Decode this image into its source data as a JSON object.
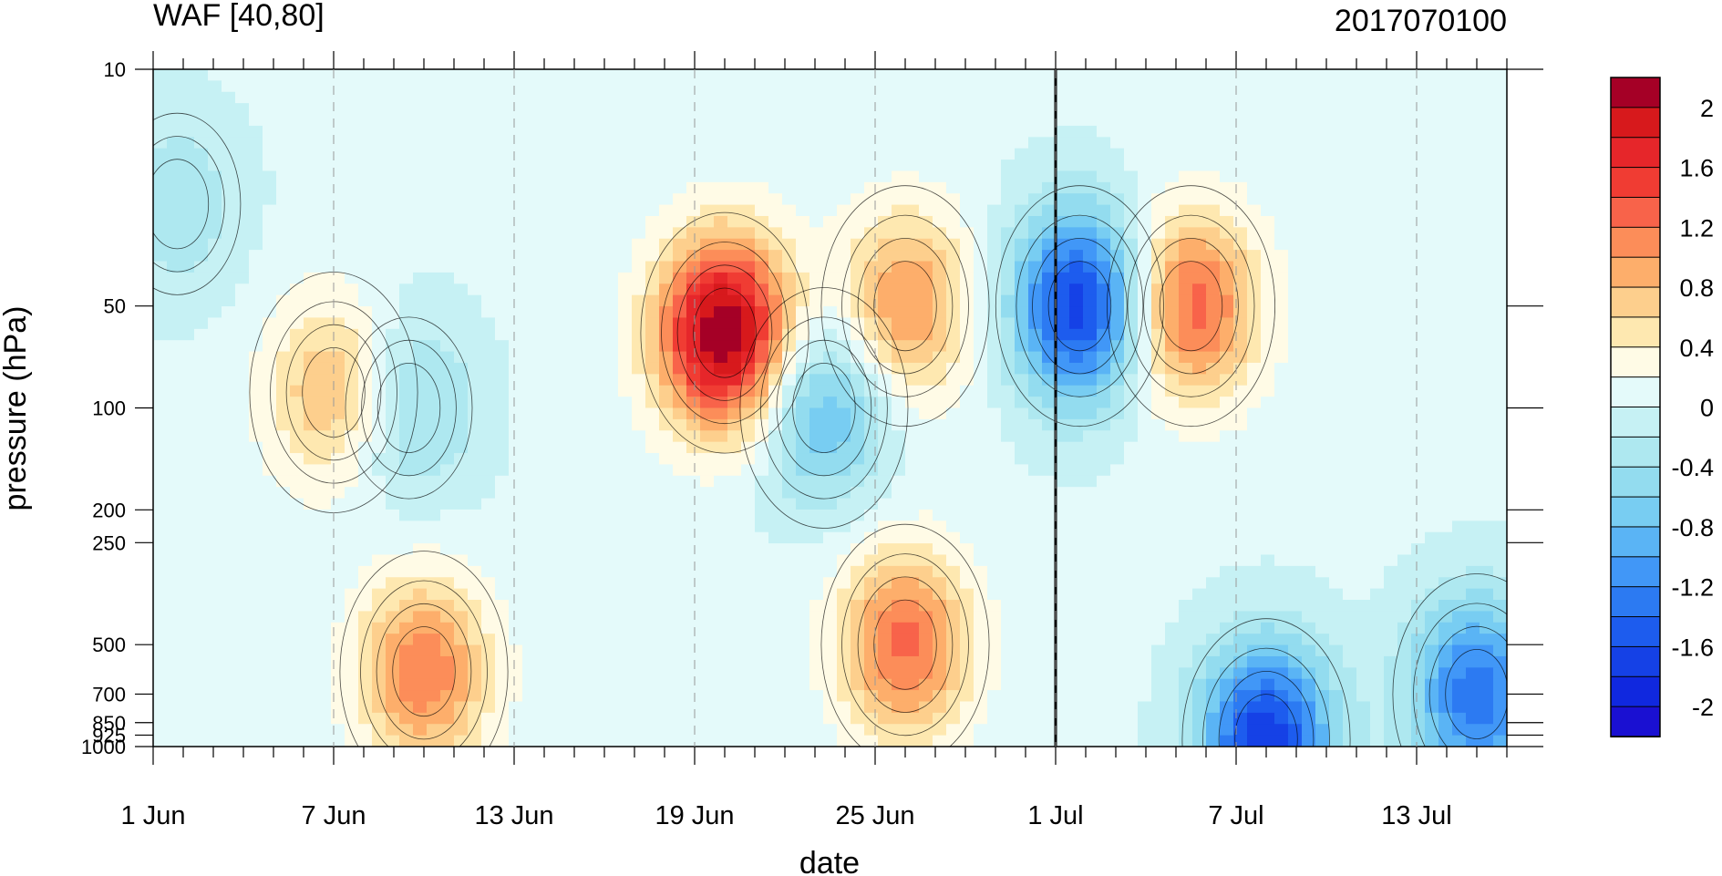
{
  "chart_data": {
    "type": "heatmap",
    "title": "WAF [40,80]",
    "title_right": "2017070100",
    "xlabel": "date",
    "ylabel": "pressure (hPa)",
    "x_ticks": [
      "1 Jun",
      "7 Jun",
      "13 Jun",
      "19 Jun",
      "25 Jun",
      "1 Jul",
      "7 Jul",
      "13 Jul"
    ],
    "x_tick_days": [
      0,
      6,
      12,
      18,
      24,
      30,
      36,
      42
    ],
    "x_range_days": [
      0,
      45
    ],
    "y_ticks": [
      "10",
      "50",
      "100",
      "200",
      "250",
      "500",
      "700",
      "850",
      "925",
      "1000"
    ],
    "y_tick_values": [
      10,
      50,
      100,
      200,
      250,
      500,
      700,
      850,
      925,
      1000
    ],
    "y_scale": "log",
    "y_range": [
      10,
      1000
    ],
    "marker_line_day": 30,
    "colorbar": {
      "labels": [
        "2",
        "1.6",
        "1.2",
        "0.8",
        "0.4",
        "0",
        "-0.4",
        "-0.8",
        "-1.2",
        "-1.6",
        "-2"
      ],
      "levels": [
        2.2,
        2.0,
        1.8,
        1.6,
        1.4,
        1.2,
        1.0,
        0.8,
        0.6,
        0.4,
        0.2,
        0.0,
        -0.2,
        -0.4,
        -0.6,
        -0.8,
        -1.0,
        -1.2,
        -1.4,
        -1.6,
        -1.8,
        -2.0,
        -2.2
      ],
      "colors": [
        "#a50026",
        "#d7191c",
        "#e6262a",
        "#f03c33",
        "#f8634a",
        "#fc8d59",
        "#fdae6b",
        "#fdcf8d",
        "#fee8b0",
        "#fffbe6",
        "#e4fafa",
        "#c6f1f4",
        "#aee8f0",
        "#93dcef",
        "#78cdf2",
        "#5ab4f5",
        "#4197f7",
        "#2c7af2",
        "#1d5cee",
        "#1541e6",
        "#1028df",
        "#1a10d2"
      ]
    },
    "features": [
      {
        "label": "positive max",
        "day": 19,
        "p": 60,
        "value": 2.2
      },
      {
        "label": "positive max",
        "day": 34.5,
        "p": 50,
        "value": 1.3
      },
      {
        "label": "positive",
        "day": 25,
        "p": 50,
        "value": 1.0
      },
      {
        "label": "positive",
        "day": 25,
        "p": 500,
        "value": 1.2
      },
      {
        "label": "positive",
        "day": 9,
        "p": 600,
        "value": 1.1
      },
      {
        "label": "positive",
        "day": 6,
        "p": 90,
        "value": 0.8
      },
      {
        "label": "negative min",
        "day": 30.8,
        "p": 50,
        "value": -1.8
      },
      {
        "label": "negative min",
        "day": 37,
        "p": 950,
        "value": -1.8
      },
      {
        "label": "negative",
        "day": 44,
        "p": 700,
        "value": -1.4
      },
      {
        "label": "negative",
        "day": 22.3,
        "p": 100,
        "value": -0.9
      },
      {
        "label": "negative",
        "day": 8.5,
        "p": 100,
        "value": -0.6
      },
      {
        "label": "negative",
        "day": 0.8,
        "p": 25,
        "value": -0.4
      }
    ]
  }
}
